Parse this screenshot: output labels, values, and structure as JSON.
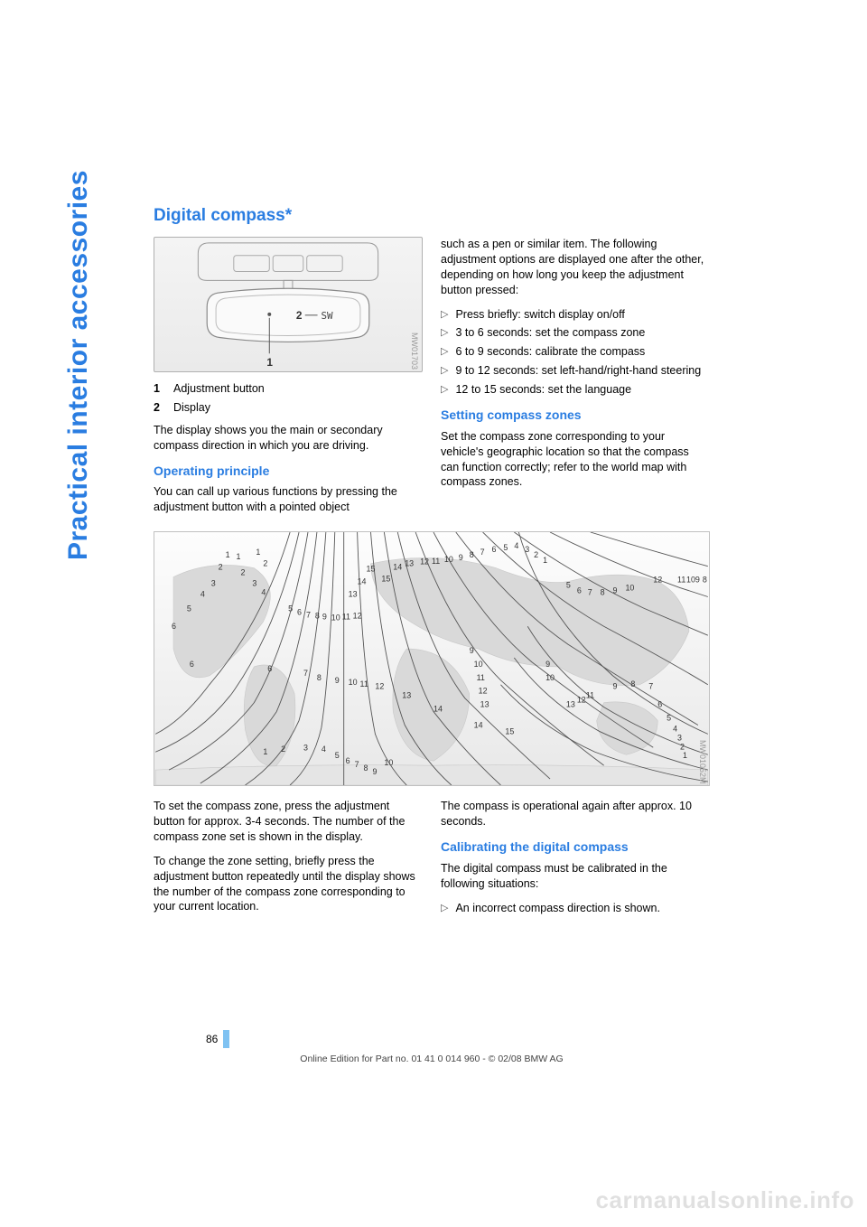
{
  "side_label": "Practical interior accessories",
  "title": "Digital compass*",
  "fig1": {
    "label_2": "2",
    "display_text": "SW",
    "label_1": "1",
    "code": "MW01703"
  },
  "legend": [
    {
      "num": "1",
      "text": "Adjustment button"
    },
    {
      "num": "2",
      "text": "Display"
    }
  ],
  "para1": "The display shows you the main or secondary compass direction in which you are driving.",
  "h2_operating": "Operating principle",
  "para2": "You can call up various functions by pressing the adjustment button with a pointed object",
  "para_r1": "such as a pen or similar item. The following adjustment options are displayed one after the other, depending on how long you keep the adjustment button pressed:",
  "options": [
    "Press briefly: switch display on/off",
    "3 to 6 seconds: set the compass zone",
    "6 to 9 seconds: calibrate the compass",
    "9 to 12 seconds: set left-hand/right-hand steering",
    "12 to 15 seconds: set the language"
  ],
  "h2_setting": "Setting compass zones",
  "para3": "Set the compass zone corresponding to your vehicle's geographic location so that the compass can function correctly; refer to the world map with compass zones.",
  "fig2": {
    "code": "MW01052M",
    "numbers_top": [
      "1",
      "2",
      "1",
      "2",
      "3",
      "4",
      "1",
      "2",
      "3",
      "4",
      "15",
      "15",
      "14",
      "14",
      "13",
      "12",
      "11",
      "10",
      "9",
      "8",
      "7",
      "6",
      "5",
      "4",
      "3",
      "2",
      "1",
      "12",
      "11",
      "10",
      "9",
      "8"
    ],
    "contours": [
      "M150,0 Q120,100 60,170 Q30,210 0,225",
      "M160,0 Q135,110 85,180 Q50,225 0,245",
      "M170,0 Q150,120 110,190 Q75,235 15,265",
      "M180,0 Q165,130 135,200 Q105,245 50,280",
      "M190,0 Q180,140 160,210 Q140,255 100,282",
      "M200,0 Q195,150 185,218 Q175,260 150,282",
      "M210,0 Q210,155 210,282",
      "M225,0 Q230,150 245,225 Q258,260 280,282",
      "M240,0 Q252,145 278,215 Q300,255 330,282",
      "M255,0 Q275,135 310,200 Q345,245 385,282",
      "M270,0 Q300,125 345,185 Q390,230 440,275",
      "M290,0 Q330,110 385,165 Q440,215 500,260",
      "M310,0 Q360,95 420,145 Q485,195 555,240",
      "M335,0 Q395,80 460,125 Q530,170 605,215",
      "M365,0 Q430,65 500,105 Q575,145 616,170",
      "M400,0 Q470,50 545,85 Q616,115 616,115",
      "M440,0 Q510,35 585,62 Q616,72 616,72",
      "M485,0 Q550,20 616,38",
      "M616,225 Q560,200 510,160 Q465,120 435,70 Q415,35 405,0",
      "M616,248 Q555,228 500,195 Q445,155 415,105",
      "M616,265 Q555,250 495,222 Q435,188 400,140",
      "M616,278 Q552,268 490,245 Q425,215 385,170"
    ]
  },
  "para4": "To set the compass zone, press the adjustment button for approx. 3-4 seconds. The number of the compass zone set is shown in the display.",
  "para5": "To change the zone setting, briefly press the adjustment button repeatedly until the display shows the number of the compass zone corresponding to your current location.",
  "para6": "The compass is operational again after approx. 10 seconds.",
  "h2_calib": "Calibrating the digital compass",
  "para7": "The digital compass must be calibrated in the following situations:",
  "calib_bullets": [
    "An incorrect compass direction is shown."
  ],
  "page_number": "86",
  "footer_text": "Online Edition for Part no. 01 41 0 014 960 - © 02/08 BMW AG",
  "watermark": "carmanualsonline.info"
}
